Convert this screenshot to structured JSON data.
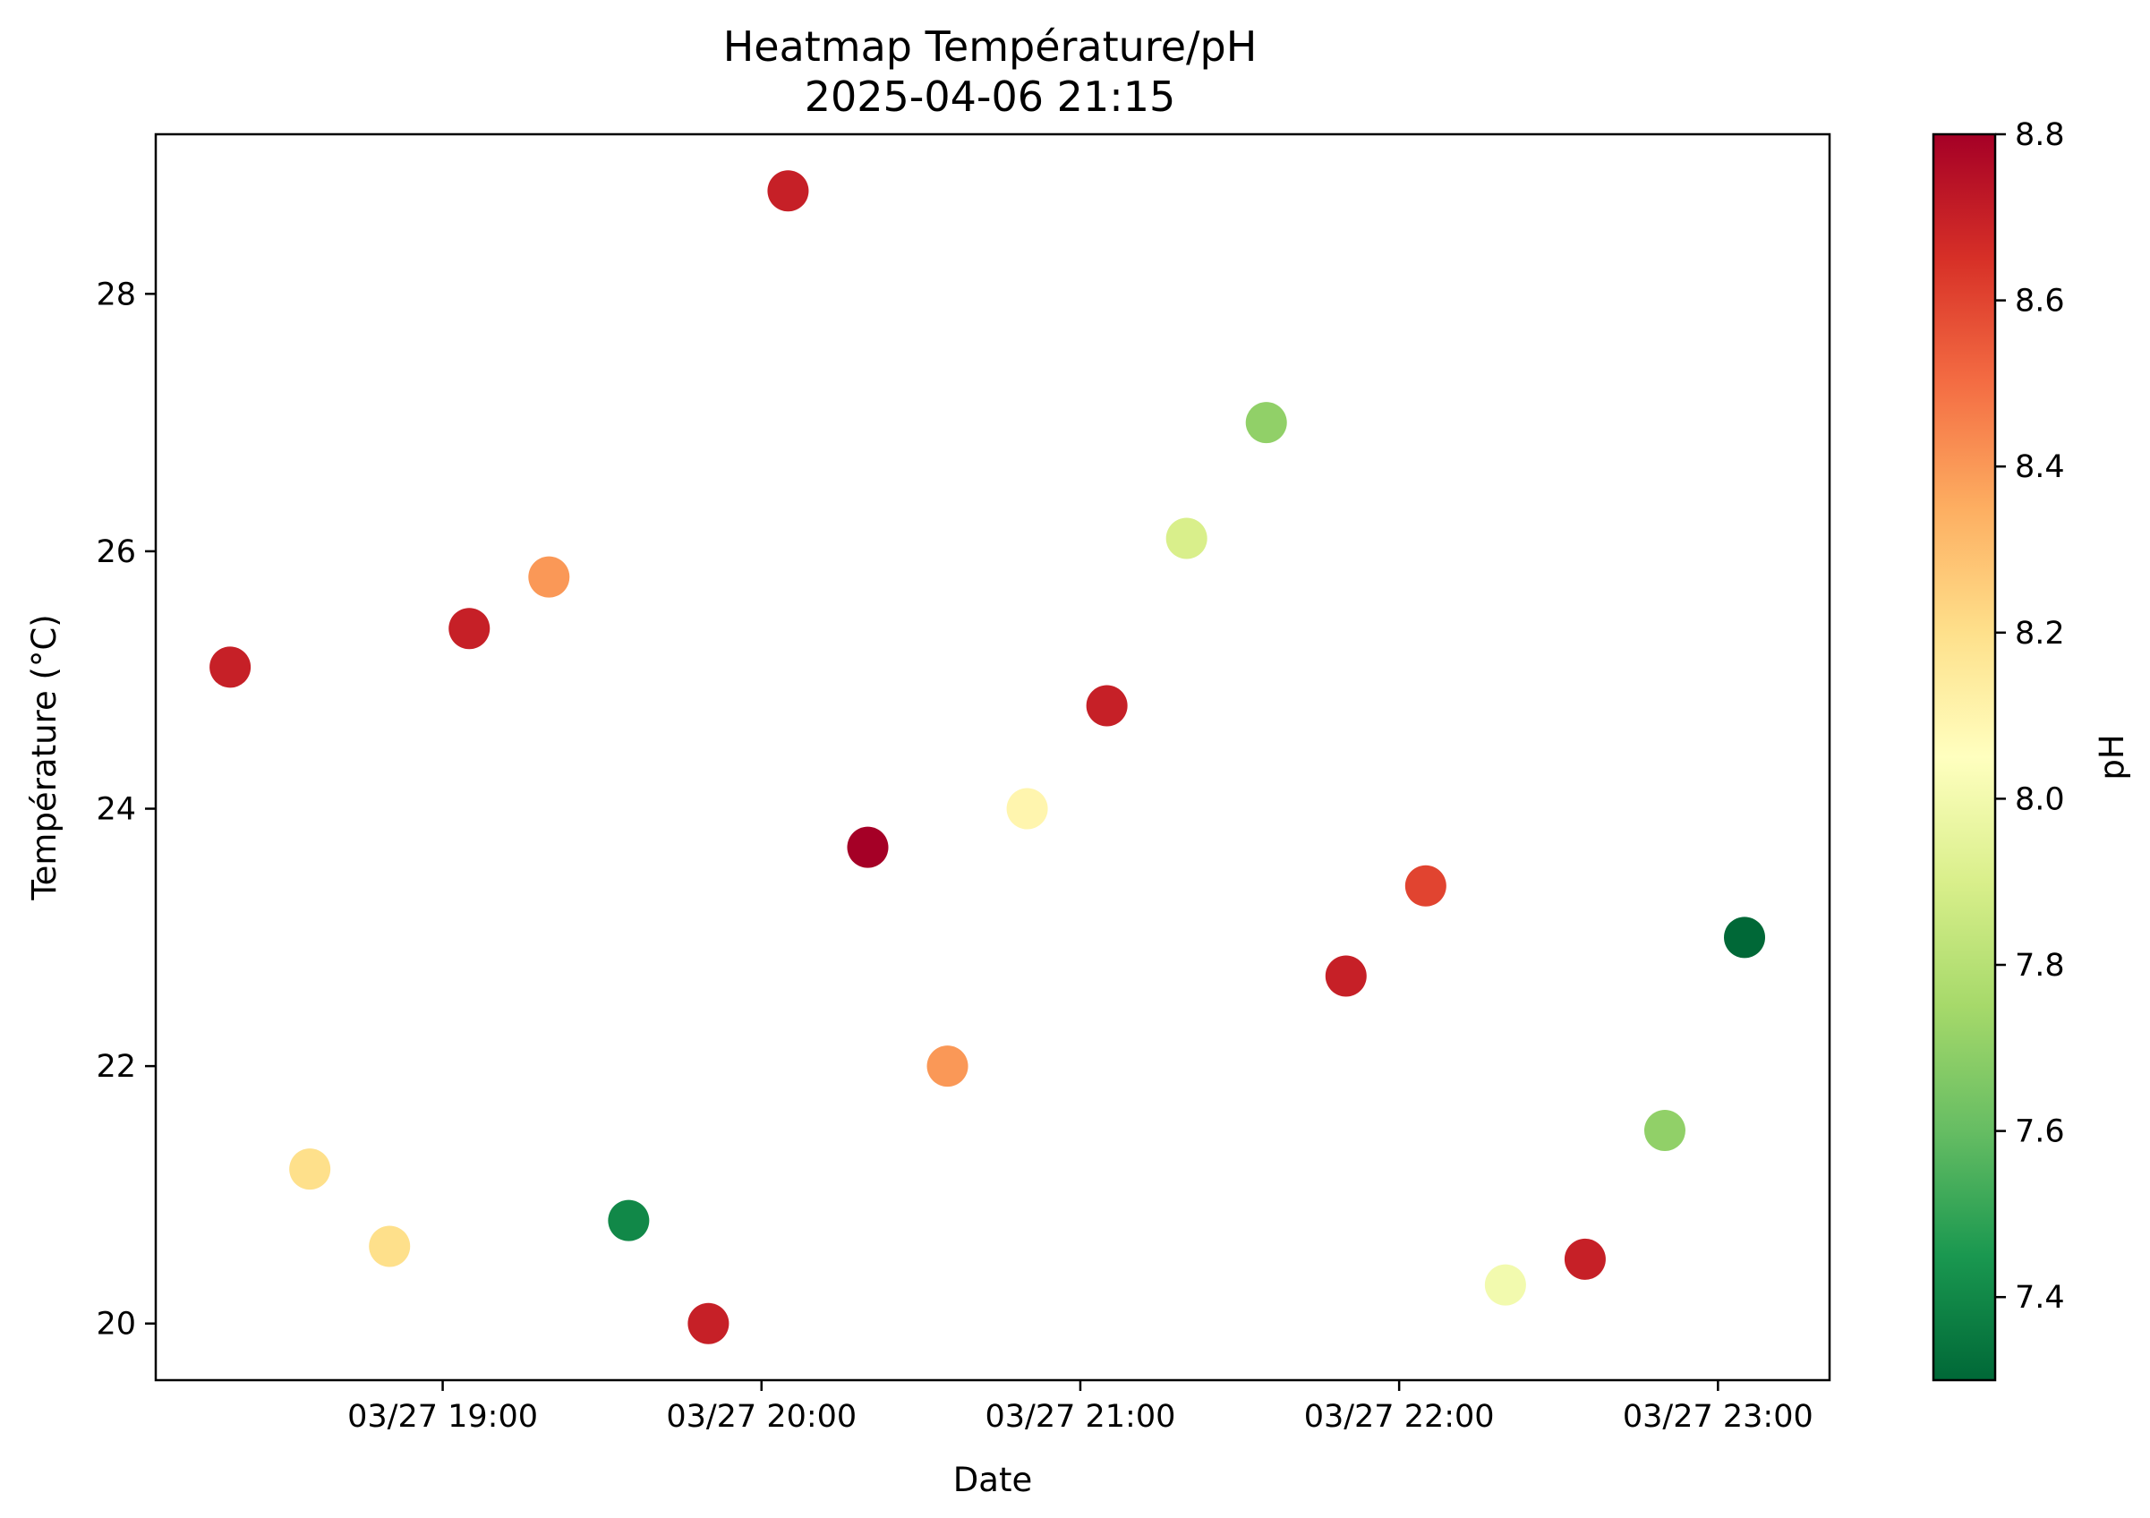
{
  "chart_data": {
    "type": "scatter",
    "title": "Heatmap Température/pH",
    "subtitle": "2025-04-06 21:15",
    "xlabel": "Date",
    "ylabel": "Température (°C)",
    "colorbar_label": "pH",
    "x_axis": {
      "type": "datetime",
      "range": [
        "2025-03-27 18:06",
        "2025-03-27 23:21"
      ],
      "ticks": [
        {
          "value": "2025-03-27 19:00",
          "label": "03/27 19:00"
        },
        {
          "value": "2025-03-27 20:00",
          "label": "03/27 20:00"
        },
        {
          "value": "2025-03-27 21:00",
          "label": "03/27 21:00"
        },
        {
          "value": "2025-03-27 22:00",
          "label": "03/27 22:00"
        },
        {
          "value": "2025-03-27 23:00",
          "label": "03/27 23:00"
        }
      ]
    },
    "y_axis": {
      "range": [
        19.56,
        29.24
      ],
      "ticks": [
        {
          "value": 20,
          "label": "20"
        },
        {
          "value": 22,
          "label": "22"
        },
        {
          "value": 24,
          "label": "24"
        },
        {
          "value": 26,
          "label": "26"
        },
        {
          "value": 28,
          "label": "28"
        }
      ]
    },
    "colorbar": {
      "colormap": "RdYlGn_r",
      "range": [
        7.3,
        8.8
      ],
      "ticks": [
        {
          "value": 7.4,
          "label": "7.4"
        },
        {
          "value": 7.6,
          "label": "7.6"
        },
        {
          "value": 7.8,
          "label": "7.8"
        },
        {
          "value": 8.0,
          "label": "8.0"
        },
        {
          "value": 8.2,
          "label": "8.2"
        },
        {
          "value": 8.4,
          "label": "8.4"
        },
        {
          "value": 8.6,
          "label": "8.6"
        },
        {
          "value": 8.8,
          "label": "8.8"
        }
      ]
    },
    "grid": false,
    "points": [
      {
        "x": "2025-03-27 18:20",
        "y": 25.1,
        "ph": 8.7
      },
      {
        "x": "2025-03-27 18:35",
        "y": 21.2,
        "ph": 8.2
      },
      {
        "x": "2025-03-27 18:50",
        "y": 20.6,
        "ph": 8.2
      },
      {
        "x": "2025-03-27 19:05",
        "y": 25.4,
        "ph": 8.7
      },
      {
        "x": "2025-03-27 19:20",
        "y": 25.8,
        "ph": 8.4
      },
      {
        "x": "2025-03-27 19:35",
        "y": 20.8,
        "ph": 7.4
      },
      {
        "x": "2025-03-27 19:50",
        "y": 20.0,
        "ph": 8.7
      },
      {
        "x": "2025-03-27 20:05",
        "y": 28.8,
        "ph": 8.7
      },
      {
        "x": "2025-03-27 20:20",
        "y": 23.7,
        "ph": 8.8
      },
      {
        "x": "2025-03-27 20:35",
        "y": 22.0,
        "ph": 8.4
      },
      {
        "x": "2025-03-27 20:50",
        "y": 24.0,
        "ph": 8.1
      },
      {
        "x": "2025-03-27 21:05",
        "y": 24.8,
        "ph": 8.7
      },
      {
        "x": "2025-03-27 21:20",
        "y": 26.1,
        "ph": 7.9
      },
      {
        "x": "2025-03-27 21:35",
        "y": 27.0,
        "ph": 7.7
      },
      {
        "x": "2025-03-27 21:50",
        "y": 22.7,
        "ph": 8.7
      },
      {
        "x": "2025-03-27 22:05",
        "y": 23.4,
        "ph": 8.6
      },
      {
        "x": "2025-03-27 22:20",
        "y": 20.3,
        "ph": 8.0
      },
      {
        "x": "2025-03-27 22:35",
        "y": 20.5,
        "ph": 8.7
      },
      {
        "x": "2025-03-27 22:50",
        "y": 21.5,
        "ph": 7.7
      },
      {
        "x": "2025-03-27 23:05",
        "y": 23.0,
        "ph": 7.3
      }
    ]
  }
}
